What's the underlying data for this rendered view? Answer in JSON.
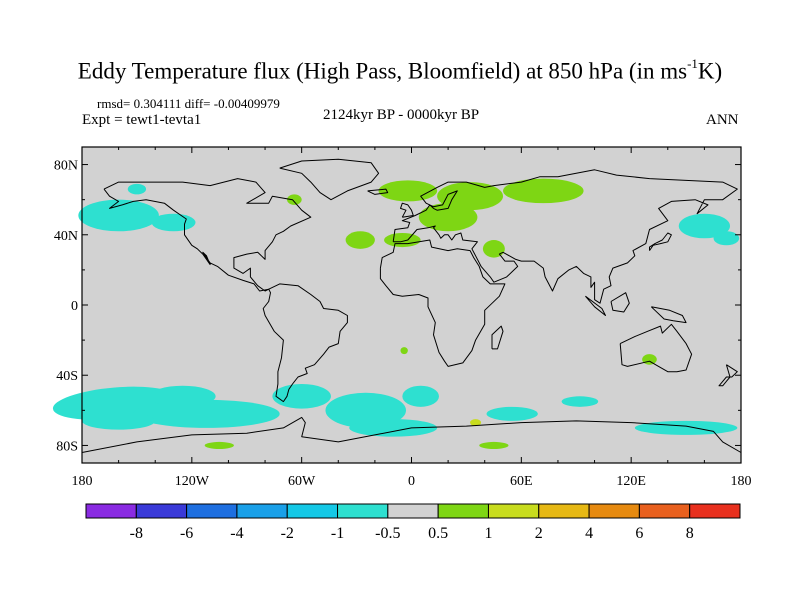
{
  "title_main": "Eddy Temperature flux (High Pass, Bloomfield) at 850 hPa (in ms",
  "title_sup": "-1",
  "title_end": "K)",
  "stats": "rmsd= 0.304111  diff= -0.00409979",
  "experiment": "Expt = tewt1-tevta1",
  "period": "2124kyr BP - 0000kyr BP",
  "season": "ANN",
  "lat_ticks": [
    "80N",
    "40N",
    "0",
    "40S",
    "80S"
  ],
  "lon_ticks": [
    "180",
    "120W",
    "60W",
    "0",
    "60E",
    "120E",
    "180"
  ],
  "colorbar": {
    "labels": [
      "-8",
      "-6",
      "-4",
      "-2",
      "-1",
      "-0.5",
      "0.5",
      "1",
      "2",
      "4",
      "6",
      "8"
    ],
    "colors": [
      "#8a2be2",
      "#3a3ad8",
      "#1e6fe0",
      "#1aa0e8",
      "#14c8e6",
      "#2ee0d0",
      "#d2d2d2",
      "#7ed614",
      "#c8dc1e",
      "#e6b814",
      "#e68a10",
      "#e8601e",
      "#e8301e"
    ]
  },
  "map_colors": {
    "background": "#d2d2d2",
    "cyan": "#2ee0d0",
    "light_cyan": "#14c8e6",
    "green": "#7ed614",
    "yellow": "#c8dc1e",
    "coast": "#000000"
  }
}
